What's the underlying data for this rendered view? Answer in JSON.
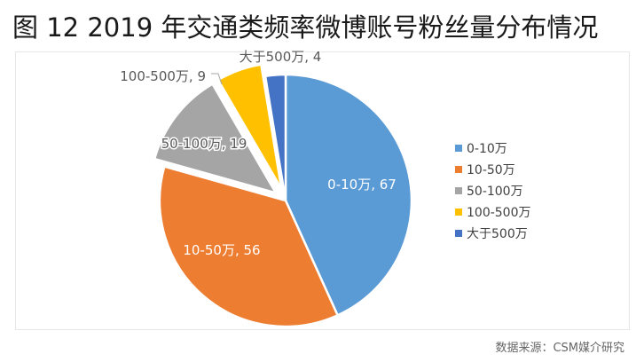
{
  "title": "图 12 2019 年交通类频率微博账号粉丝量分布情况",
  "source": "数据来源：CSM媒介研究",
  "colors": {
    "blue": "#5b9bd5",
    "orange": "#ed7d31",
    "gray": "#a5a5a5",
    "yellow": "#ffc000",
    "darkblue": "#4472c4"
  },
  "chart_data": {
    "type": "pie",
    "title": "图 12 2019 年交通类频率微博账号粉丝量分布情况",
    "legend_position": "right",
    "slices": [
      {
        "label": "0-10万",
        "value": 67,
        "data_label": "0-10万, 67",
        "color": "#5b9bd5"
      },
      {
        "label": "10-50万",
        "value": 56,
        "data_label": "10-50万, 56",
        "color": "#ed7d31"
      },
      {
        "label": "50-100万",
        "value": 19,
        "data_label": "50-100万, 19",
        "color": "#a5a5a5"
      },
      {
        "label": "100-500万",
        "value": 9,
        "data_label": "100-500万, 9",
        "color": "#ffc000"
      },
      {
        "label": "大于500万",
        "value": 4,
        "data_label": "大于500万, 4",
        "color": "#4472c4"
      }
    ]
  }
}
